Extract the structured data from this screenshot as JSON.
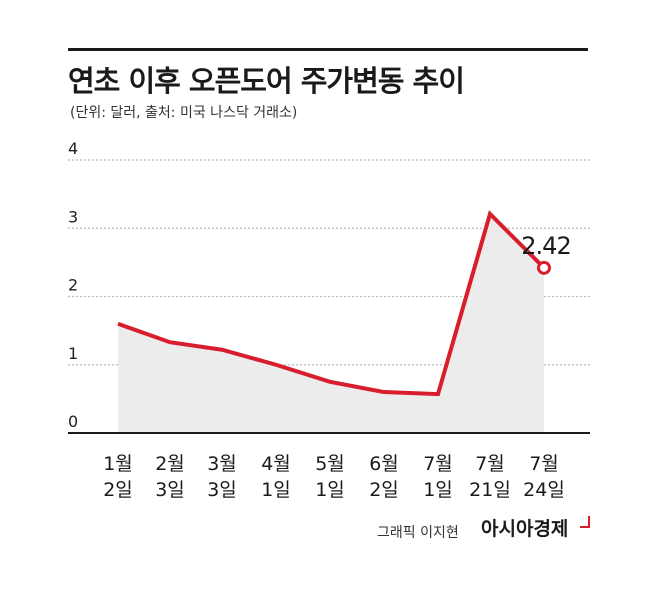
{
  "header": {
    "title": "연초 이후 오픈도어 주가변동 추이",
    "subtitle": "(단위: 달러, 출처: 미국 나스닥 거래소)"
  },
  "footer": {
    "credit": "그래픽 이지현",
    "brand": "아시아경제"
  },
  "colors": {
    "line": "#d81e2c",
    "area": "#ececec",
    "grid": "#bbbbbb",
    "axis": "#1a1a1a"
  },
  "chart_data": {
    "type": "line",
    "title": "연초 이후 오픈도어 주가변동 추이",
    "subtitle": "(단위: 달러, 출처: 미국 나스닥 거래소)",
    "categories": [
      [
        "1월",
        "2일"
      ],
      [
        "2월",
        "3일"
      ],
      [
        "3월",
        "3일"
      ],
      [
        "4월",
        "1일"
      ],
      [
        "5월",
        "1일"
      ],
      [
        "6월",
        "2일"
      ],
      [
        "7월",
        "1일"
      ],
      [
        "7월",
        "21일"
      ],
      [
        "7월",
        "24일"
      ]
    ],
    "values": [
      1.6,
      1.33,
      1.22,
      1.0,
      0.75,
      0.6,
      0.57,
      3.21,
      2.42
    ],
    "ylim": [
      0,
      4
    ],
    "yticks": [
      0,
      1,
      2,
      3,
      4
    ],
    "grid": true,
    "area_fill": true,
    "annotation": {
      "index": 8,
      "label": "2.42"
    }
  }
}
